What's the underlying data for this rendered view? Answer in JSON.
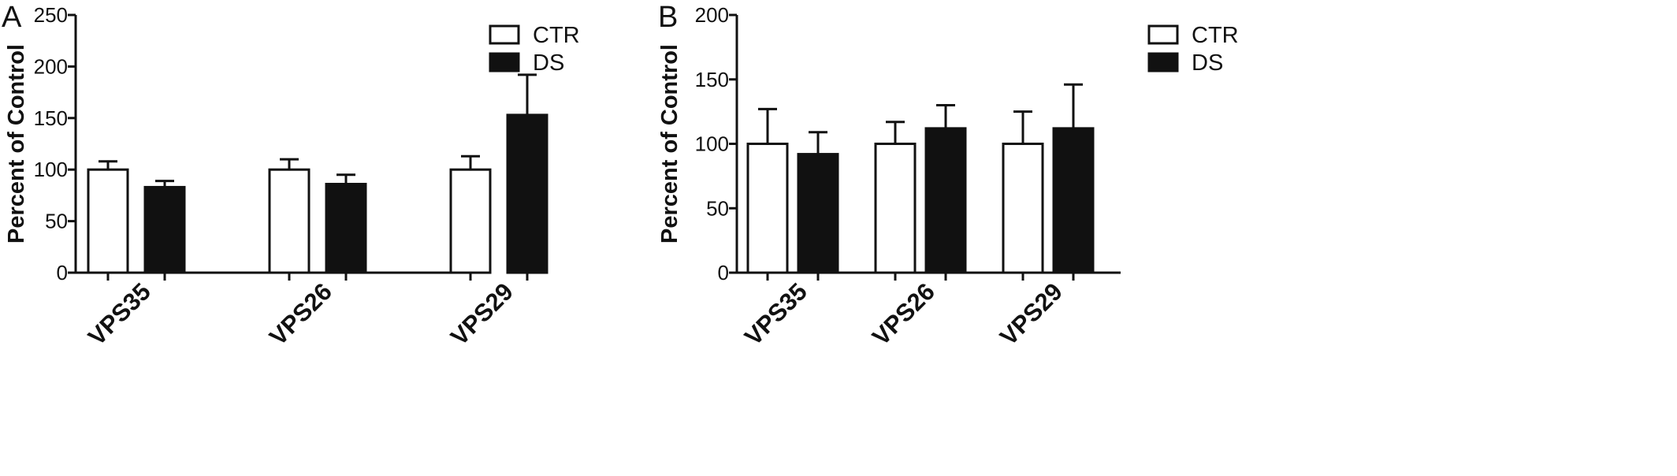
{
  "chart_data": [
    {
      "type": "bar",
      "panel": "A",
      "ylabel": "Percent of Control",
      "xlabel": "",
      "ylim": [
        0,
        250
      ],
      "yticks": [
        0,
        50,
        100,
        150,
        200,
        250
      ],
      "categories": [
        "VPS35",
        "VPS26",
        "VPS29"
      ],
      "legend_position": "top-right",
      "grid": false,
      "series": [
        {
          "name": "CTR",
          "values": [
            100,
            100,
            100
          ],
          "errors": [
            8,
            10,
            13
          ],
          "fill": "#ffffff"
        },
        {
          "name": "DS",
          "values": [
            83,
            86,
            153
          ],
          "errors": [
            6,
            9,
            39
          ],
          "fill": "#111111"
        }
      ]
    },
    {
      "type": "bar",
      "panel": "B",
      "ylabel": "Percent of Control",
      "xlabel": "",
      "ylim": [
        0,
        200
      ],
      "yticks": [
        0,
        50,
        100,
        150,
        200
      ],
      "categories": [
        "VPS35",
        "VPS26",
        "VPS29"
      ],
      "legend_position": "top-right",
      "grid": false,
      "series": [
        {
          "name": "CTR",
          "values": [
            100,
            100,
            100
          ],
          "errors": [
            27,
            17,
            25
          ],
          "fill": "#ffffff"
        },
        {
          "name": "DS",
          "values": [
            92,
            112,
            112
          ],
          "errors": [
            17,
            18,
            34
          ],
          "fill": "#111111"
        }
      ]
    }
  ]
}
